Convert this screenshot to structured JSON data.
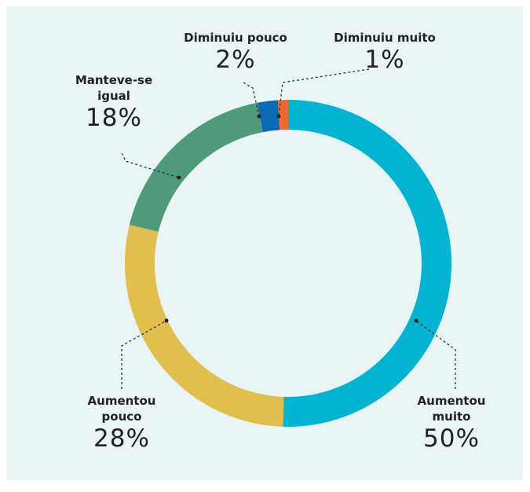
{
  "chart_data": {
    "type": "donut",
    "categories": [
      "Aumentou muito",
      "Aumentou pouco",
      "Manteve-se igual",
      "Diminuiu pouco",
      "Diminuiu muito"
    ],
    "values": [
      50,
      28,
      18,
      2,
      1
    ],
    "value_labels": [
      "50%",
      "28%",
      "18%",
      "2%",
      "1%"
    ],
    "colors": [
      "#00b4d0",
      "#e1bf4f",
      "#4f9a7b",
      "#0b6ab4",
      "#f2692a"
    ]
  }
}
